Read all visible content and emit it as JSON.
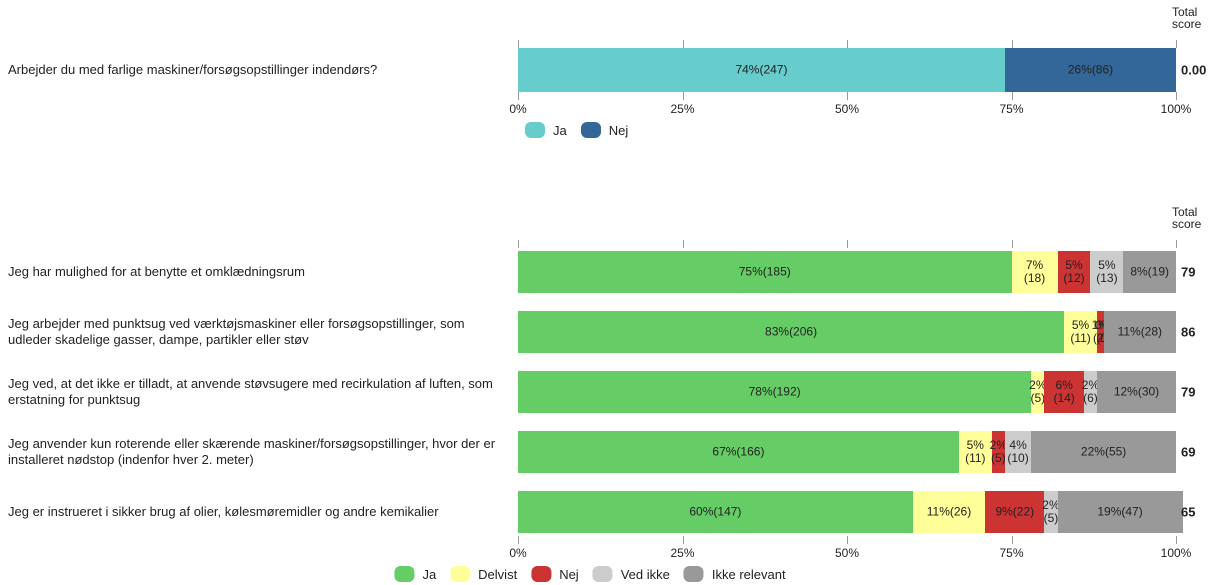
{
  "chart_data": [
    {
      "type": "bar",
      "orientation": "horizontal",
      "stacked": true,
      "categories": [
        "Arbejder du med farlige maskiner/forsøgsopstillinger indendørs?"
      ],
      "series": [
        {
          "name": "Ja",
          "color": "#66cccc",
          "values": [
            74
          ],
          "value_labels": [
            "74%(247)"
          ]
        },
        {
          "name": "Nej",
          "color": "#336699",
          "values": [
            26
          ],
          "value_labels": [
            "26%(86)"
          ]
        }
      ],
      "xlim": [
        0,
        100
      ],
      "xticks": [
        {
          "value": 0,
          "label": "0%"
        },
        {
          "value": 25,
          "label": "25%"
        },
        {
          "value": 50,
          "label": "50%"
        },
        {
          "value": 75,
          "label": "75%"
        },
        {
          "value": 100,
          "label": "100%"
        }
      ],
      "total_score_title": "Total score",
      "total_scores": [
        0
      ],
      "total_score_labels": [
        "0.00"
      ]
    },
    {
      "type": "bar",
      "orientation": "horizontal",
      "stacked": true,
      "categories": [
        "Jeg har mulighed for at benytte et omklædningsrum",
        "Jeg arbejder med punktsug ved værktøjsmaskiner eller forsøgsopstillinger, som udleder skadelige gasser, dampe, partikler eller støv",
        "Jeg ved, at det ikke er tilladt, at anvende støvsugere med recirkulation af luften, som erstatning for punktsug",
        "Jeg anvender kun roterende eller skærende maskiner/forsøgsopstillinger, hvor der er installeret nødstop (indenfor hver 2. meter)",
        "Jeg er instrueret i sikker brug af olier, kølesmøremidler og andre kemikalier"
      ],
      "series": [
        {
          "name": "Ja",
          "color": "#66cc66",
          "values": [
            75,
            83,
            78,
            67,
            60
          ],
          "value_labels": [
            "75%(185)",
            "83%(206)",
            "78%(192)",
            "67%(166)",
            "60%(147)"
          ]
        },
        {
          "name": "Delvist",
          "color": "#ffff99",
          "values": [
            7,
            5,
            2,
            5,
            11
          ],
          "value_labels": [
            "7%\n(18)",
            "5%\n(11)",
            "2%\n(5)",
            "5%\n(11)",
            "11%(26)"
          ]
        },
        {
          "name": "Nej",
          "color": "#cc3333",
          "values": [
            5,
            1,
            6,
            2,
            9
          ],
          "value_labels": [
            "5%\n(12)",
            "1%\n(2)",
            "6%\n(14)",
            "2%\n(5)",
            "9%(22)"
          ]
        },
        {
          "name": "Ved ikke",
          "color": "#cccccc",
          "values": [
            5,
            0,
            2,
            4,
            2
          ],
          "value_labels": [
            "5%\n(13)",
            "0%\n(0)",
            "2%\n(6)",
            "4%\n(10)",
            "2%\n(5)"
          ]
        },
        {
          "name": "Ikke relevant",
          "color": "#999999",
          "values": [
            8,
            11,
            12,
            22,
            19
          ],
          "value_labels": [
            "8%(19)",
            "11%(28)",
            "12%(30)",
            "22%(55)",
            "19%(47)"
          ]
        }
      ],
      "xlim": [
        0,
        100
      ],
      "xticks": [
        {
          "value": 0,
          "label": "0%"
        },
        {
          "value": 25,
          "label": "25%"
        },
        {
          "value": 50,
          "label": "50%"
        },
        {
          "value": 75,
          "label": "75%"
        },
        {
          "value": 100,
          "label": "100%"
        }
      ],
      "total_score_title": "Total score",
      "total_scores": [
        79,
        86,
        79,
        69,
        65
      ]
    }
  ]
}
